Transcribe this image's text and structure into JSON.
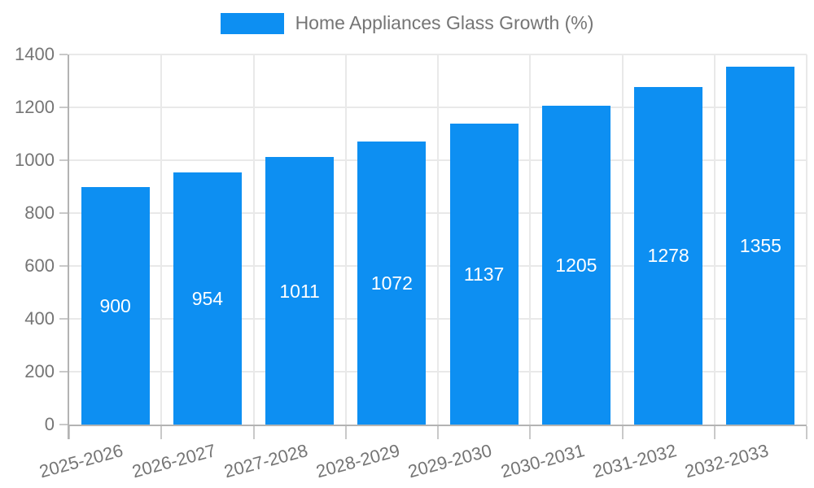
{
  "chart_data": {
    "type": "bar",
    "title": "Home Appliances Glass Growth (%)",
    "legend": {
      "label": "Home Appliances Glass Growth (%)",
      "position": "top-center"
    },
    "categories": [
      "2025-2026",
      "2026-2027",
      "2027-2028",
      "2028-2029",
      "2029-2030",
      "2030-2031",
      "2031-2032",
      "2032-2033"
    ],
    "values": [
      900,
      954,
      1011,
      1072,
      1137,
      1205,
      1278,
      1355
    ],
    "xlabel": "",
    "ylabel": "",
    "ylim": [
      0,
      1400
    ],
    "yticks": [
      0,
      200,
      400,
      600,
      800,
      1000,
      1200,
      1400
    ],
    "grid": true,
    "value_labels_position": "inside-center",
    "x_label_rotation_deg": -15,
    "colors": {
      "bar": "#0d8ff2",
      "value_label": "#ffffff",
      "axis": "#b3b3b3",
      "gridline": "#e9e9e9",
      "tick_text": "#757575",
      "background": "#ffffff"
    }
  }
}
